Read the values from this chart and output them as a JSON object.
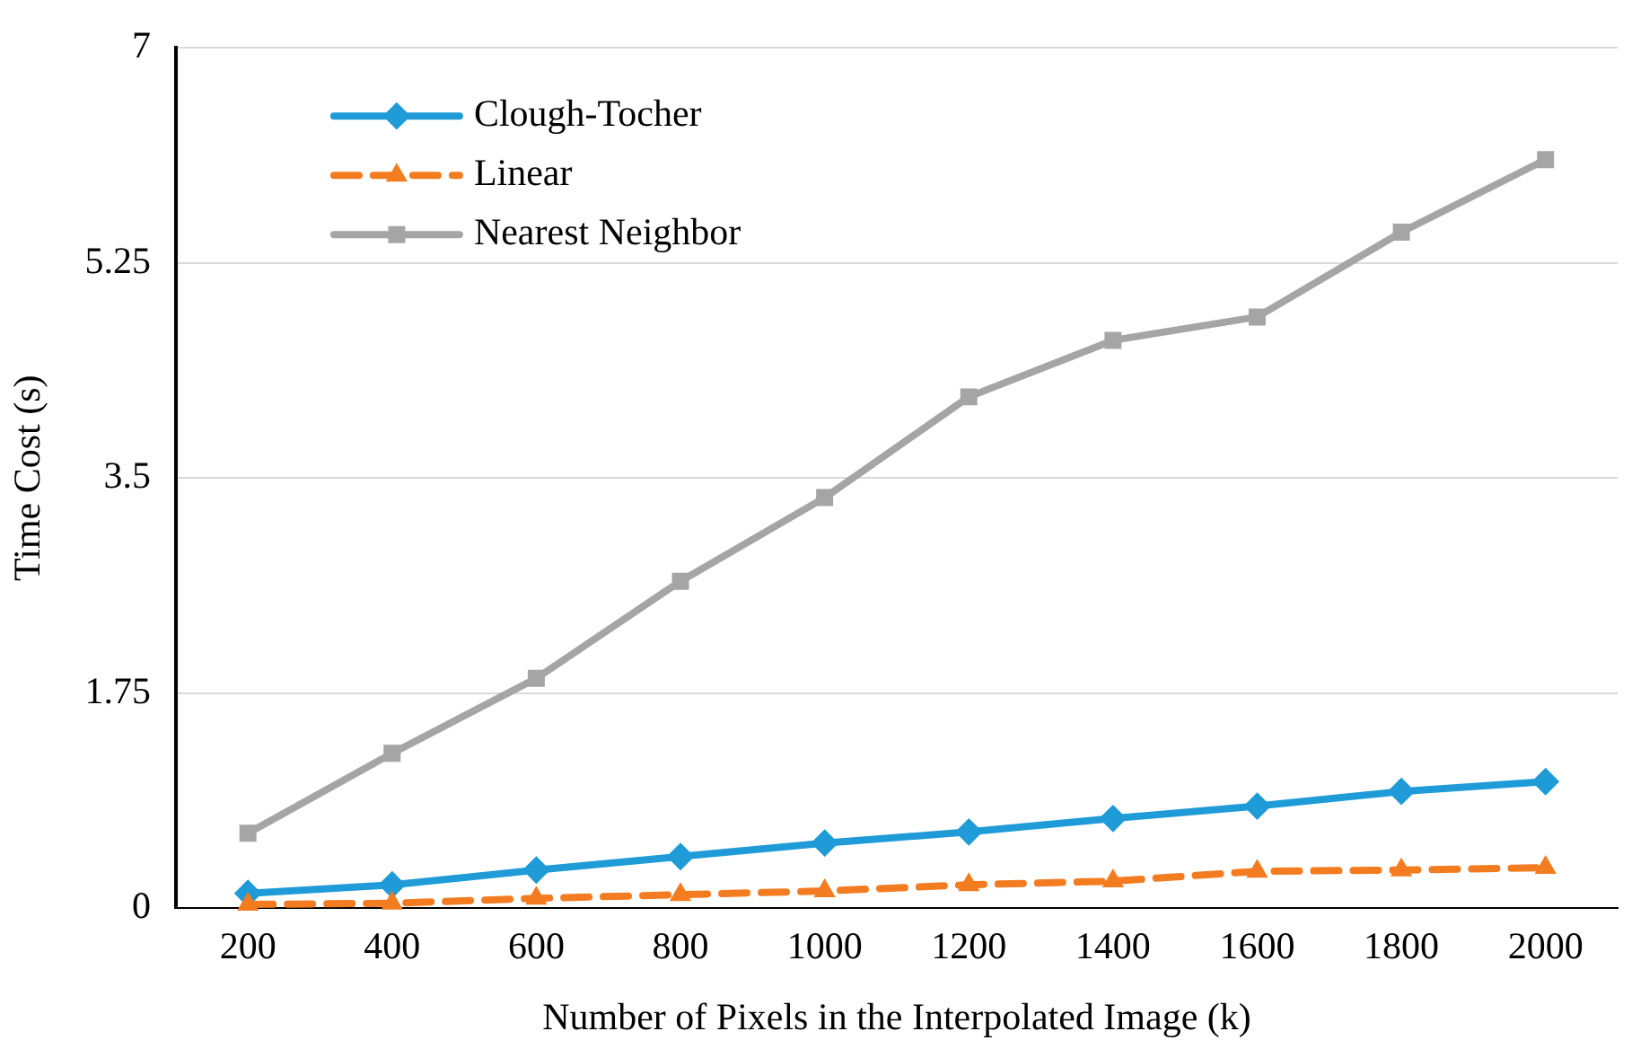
{
  "chart_data": {
    "type": "line",
    "xlabel": "Number of Pixels in the Interpolated Image (k)",
    "ylabel": "Time Cost (s)",
    "categories": [
      "200",
      "400",
      "600",
      "800",
      "1000",
      "1200",
      "1400",
      "1600",
      "1800",
      "2000"
    ],
    "series": [
      {
        "name": "Clough-Tocher",
        "color": "#1f9bd7",
        "marker": "diamond",
        "line_style": "solid",
        "values": [
          0.12,
          0.19,
          0.31,
          0.42,
          0.53,
          0.62,
          0.73,
          0.83,
          0.95,
          1.03
        ]
      },
      {
        "name": "Linear",
        "color": "#f47c20",
        "marker": "triangle",
        "line_style": "dashed",
        "values": [
          0.03,
          0.04,
          0.08,
          0.11,
          0.14,
          0.19,
          0.22,
          0.3,
          0.31,
          0.33
        ]
      },
      {
        "name": "Nearest Neighbor",
        "color": "#a5a5a5",
        "marker": "square",
        "line_style": "solid",
        "values": [
          0.61,
          1.26,
          1.87,
          2.66,
          3.34,
          4.16,
          4.62,
          4.81,
          5.5,
          6.09
        ]
      }
    ],
    "ylim": [
      0,
      7
    ],
    "yticks": [
      0,
      1.75,
      3.5,
      5.25,
      7
    ],
    "grid": "y",
    "legend": "top left"
  }
}
